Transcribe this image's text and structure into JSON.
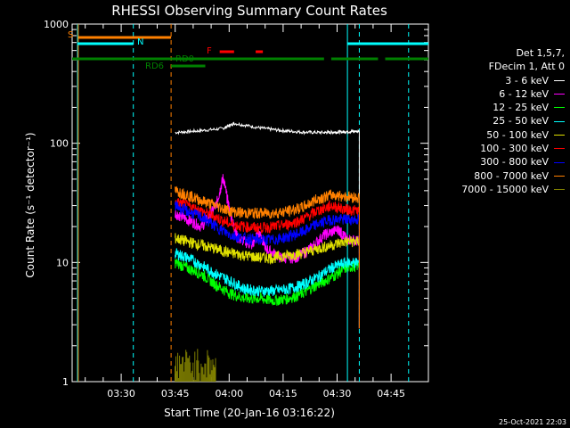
{
  "chart_data": {
    "type": "line",
    "title": "RHESSI Observing Summary Count Rates",
    "xlabel": "Start Time (20-Jan-16 03:16:22)",
    "ylabel": "Count Rate (s⁻¹ detector⁻¹)",
    "y_scale": "log",
    "ylim": [
      1,
      1000
    ],
    "xlim_minutes": [
      0,
      99
    ],
    "x_ticks": [
      "03:30",
      "03:45",
      "04:00",
      "04:15",
      "04:30",
      "04:45"
    ],
    "y_ticks": [
      "1",
      "10",
      "100",
      "1000"
    ],
    "legend_header": [
      "Det 1,5,7,",
      "FDecim 1, Att 0"
    ],
    "series": [
      {
        "name": "3 - 6 keV",
        "color": "#ffffff",
        "x": [
          28.6,
          35,
          42,
          45,
          52,
          58,
          64,
          70,
          73,
          76,
          79.8
        ],
        "y": [
          123,
          127,
          133,
          147,
          135,
          128,
          124,
          123,
          124,
          125,
          126
        ]
      },
      {
        "name": "6 - 12 keV",
        "color": "#ff00ff",
        "x": [
          28.6,
          32,
          36,
          40,
          42,
          44,
          46,
          50,
          52,
          54,
          58,
          62,
          66,
          70,
          74,
          76,
          79.8
        ],
        "y": [
          26,
          23,
          20,
          30,
          52,
          25,
          16,
          14,
          18,
          13,
          11,
          11,
          13,
          17,
          19,
          16,
          15
        ]
      },
      {
        "name": "12 - 25 keV",
        "color": "#00ff00",
        "x": [
          28.6,
          32,
          36,
          40,
          44,
          48,
          52,
          56,
          60,
          64,
          68,
          72,
          76,
          79.8
        ],
        "y": [
          10,
          9,
          8,
          6.5,
          5.5,
          5,
          5,
          4.8,
          5,
          5.5,
          6.5,
          7.5,
          9,
          9.5
        ]
      },
      {
        "name": "25 - 50 keV",
        "color": "#00ffff",
        "x": [
          28.6,
          32,
          36,
          40,
          44,
          48,
          52,
          56,
          60,
          64,
          68,
          72,
          76,
          79.8
        ],
        "y": [
          12,
          11,
          9.5,
          8,
          7,
          6,
          5.8,
          5.8,
          6,
          6.5,
          7.5,
          9,
          10,
          10
        ]
      },
      {
        "name": "50 - 100 keV",
        "color": "#e0e000",
        "x": [
          28.6,
          32,
          36,
          40,
          44,
          48,
          52,
          56,
          60,
          64,
          68,
          72,
          76,
          79.8
        ],
        "y": [
          16,
          15,
          14,
          13,
          12,
          11.5,
          11,
          11,
          11.5,
          12,
          13,
          14,
          15,
          15
        ]
      },
      {
        "name": "100 - 300 keV",
        "color": "#ff0000",
        "x": [
          28.6,
          32,
          36,
          40,
          44,
          48,
          52,
          56,
          60,
          64,
          68,
          72,
          76,
          79.8
        ],
        "y": [
          32,
          30,
          27,
          24,
          21,
          20,
          19.5,
          20,
          21,
          23,
          27,
          30,
          28,
          27
        ]
      },
      {
        "name": "300 - 800 keV",
        "color": "#0000ff",
        "x": [
          28.6,
          32,
          36,
          40,
          44,
          48,
          52,
          56,
          60,
          64,
          68,
          72,
          76,
          79.8
        ],
        "y": [
          30,
          27,
          24,
          20,
          17,
          16,
          15.5,
          15.5,
          16.5,
          18,
          21,
          23,
          23,
          23
        ]
      },
      {
        "name": "800 - 7000 keV",
        "color": "#ff8000",
        "x": [
          28.6,
          32,
          36,
          40,
          44,
          48,
          52,
          56,
          60,
          64,
          68,
          72,
          76,
          79.8
        ],
        "y": [
          40,
          37,
          33,
          30,
          27,
          26,
          26,
          26,
          27,
          29,
          34,
          37,
          36,
          35
        ]
      },
      {
        "name": "7000 - 15000 keV",
        "color": "#808000",
        "x": [
          28.6,
          32,
          36,
          40
        ],
        "y": [
          1.9,
          1.9,
          1.4,
          1.1
        ]
      }
    ],
    "flags": [
      {
        "label": "S",
        "color": "#ff8000",
        "value_row": "S"
      },
      {
        "label": "N",
        "color": "#00ffff",
        "value_row": "N"
      },
      {
        "label": "F",
        "color": "#ff0000",
        "value_row": "F"
      },
      {
        "label": "RD0",
        "color": "#008000",
        "value_row": "RD0"
      },
      {
        "label": "RD6",
        "color": "#008000",
        "value_row": "RD6"
      }
    ],
    "grid": false,
    "legend_placement": "right"
  },
  "footer": {
    "timestamp": "25-Oct-2021 22:03"
  }
}
